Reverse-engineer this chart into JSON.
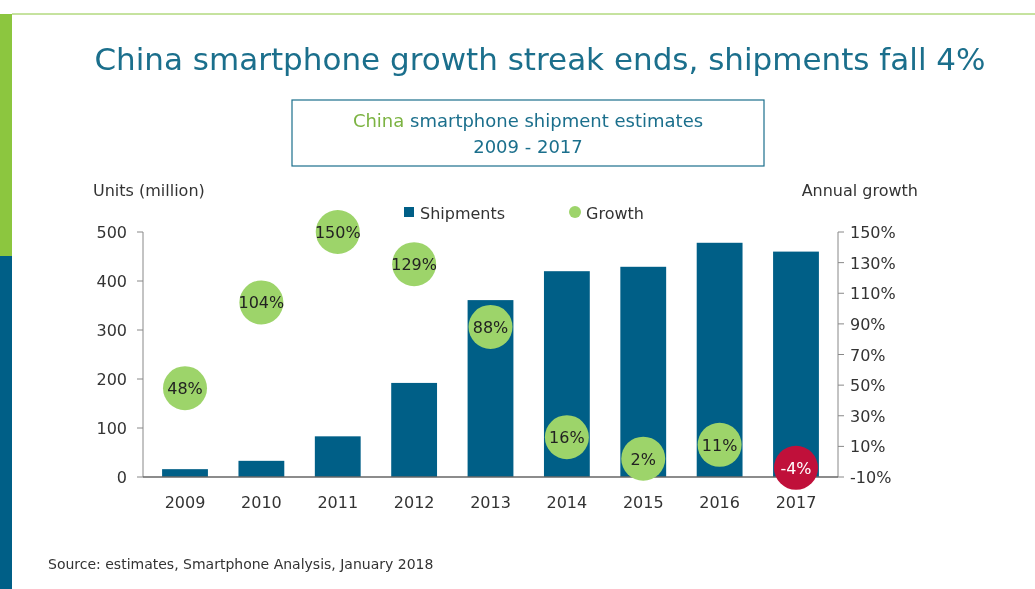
{
  "chart_data": {
    "type": "bar",
    "title": "China smartphone growth streak ends, shipments fall 4%",
    "subtitle": "China smartphone shipment estimates\n2009 - 2017",
    "ylabel": "Units (million)",
    "y2label": "Annual growth",
    "categories": [
      "2009",
      "2010",
      "2011",
      "2012",
      "2013",
      "2014",
      "2015",
      "2016",
      "2017"
    ],
    "series": [
      {
        "name": "Shipments",
        "color": "#005f87",
        "values": [
          16,
          33,
          83,
          192,
          361,
          420,
          429,
          478,
          460
        ]
      },
      {
        "name": "Growth",
        "type": "scatter",
        "axis": "y2",
        "color": "#9dd46a",
        "colors": [
          "#9dd46a",
          "#9dd46a",
          "#9dd46a",
          "#9dd46a",
          "#9dd46a",
          "#9dd46a",
          "#9dd46a",
          "#9dd46a",
          "#c0103a"
        ],
        "values": [
          48,
          104,
          150,
          129,
          88,
          16,
          2,
          11,
          -4
        ],
        "value_labels": [
          "48%",
          "104%",
          "150%",
          "129%",
          "88%",
          "16%",
          "2%",
          "11%",
          "-4%"
        ]
      }
    ],
    "ylim": [
      0,
      500
    ],
    "yticks": [
      0,
      100,
      200,
      300,
      400,
      500
    ],
    "y2lim": [
      -10,
      150
    ],
    "y2ticks": [
      {
        "value": -10,
        "label": "-10%"
      },
      {
        "value": 10,
        "label": "10%"
      },
      {
        "value": 30,
        "label": "30%"
      },
      {
        "value": 50,
        "label": "50%"
      },
      {
        "value": 70,
        "label": "70%"
      },
      {
        "value": 90,
        "label": "90%"
      },
      {
        "value": 110,
        "label": "110%"
      },
      {
        "value": 130,
        "label": "130%"
      },
      {
        "value": 150,
        "label": "150%"
      }
    ],
    "grid": false,
    "legend": "top",
    "marker": "circle",
    "annotations": [
      "Source: estimates, Smartphone Analysis, January 2018"
    ]
  }
}
